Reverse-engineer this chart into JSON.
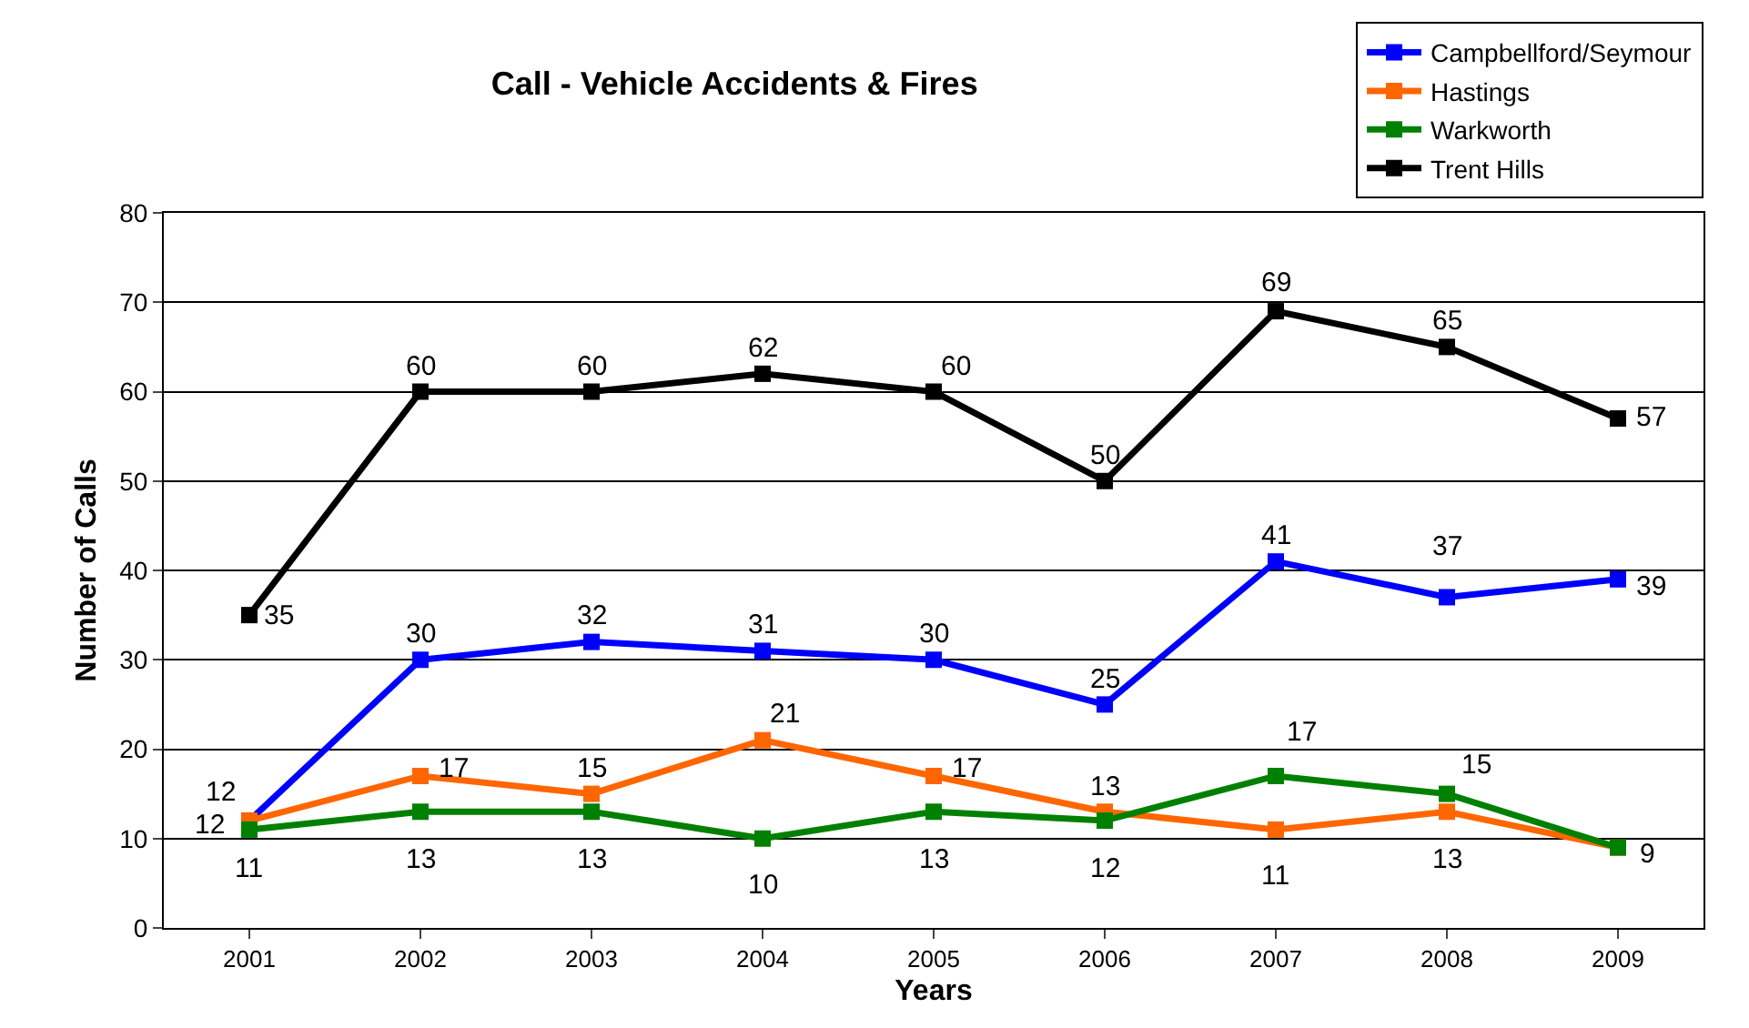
{
  "chart_data": {
    "type": "line",
    "title": "Call - Vehicle Accidents & Fires",
    "xlabel": "Years",
    "ylabel": "Number of Calls",
    "categories": [
      "2001",
      "2002",
      "2003",
      "2004",
      "2005",
      "2006",
      "2007",
      "2008",
      "2009"
    ],
    "series": [
      {
        "name": "Campbellford/Seymour",
        "color": "#0000ff",
        "values": [
          12,
          30,
          32,
          31,
          30,
          25,
          41,
          37,
          39
        ]
      },
      {
        "name": "Hastings",
        "color": "#ff6600",
        "values": [
          12,
          17,
          15,
          21,
          17,
          13,
          11,
          13,
          9
        ],
        "value_labels": [
          "12",
          "17",
          "15",
          "21",
          "17",
          "13",
          "11",
          "13",
          null
        ]
      },
      {
        "name": "Warkworth",
        "color": "#008000",
        "values": [
          11,
          13,
          13,
          10,
          13,
          12,
          17,
          15,
          9
        ]
      },
      {
        "name": "Trent Hills",
        "color": "#000000",
        "values": [
          35,
          60,
          60,
          62,
          60,
          50,
          69,
          65,
          57
        ]
      }
    ],
    "ylim": [
      0,
      80
    ],
    "yticks": [
      0,
      10,
      20,
      30,
      40,
      50,
      60,
      70,
      80
    ],
    "grid": "y",
    "legend": "top right",
    "marker": "square",
    "line_style": "solid",
    "data_labels": true
  }
}
